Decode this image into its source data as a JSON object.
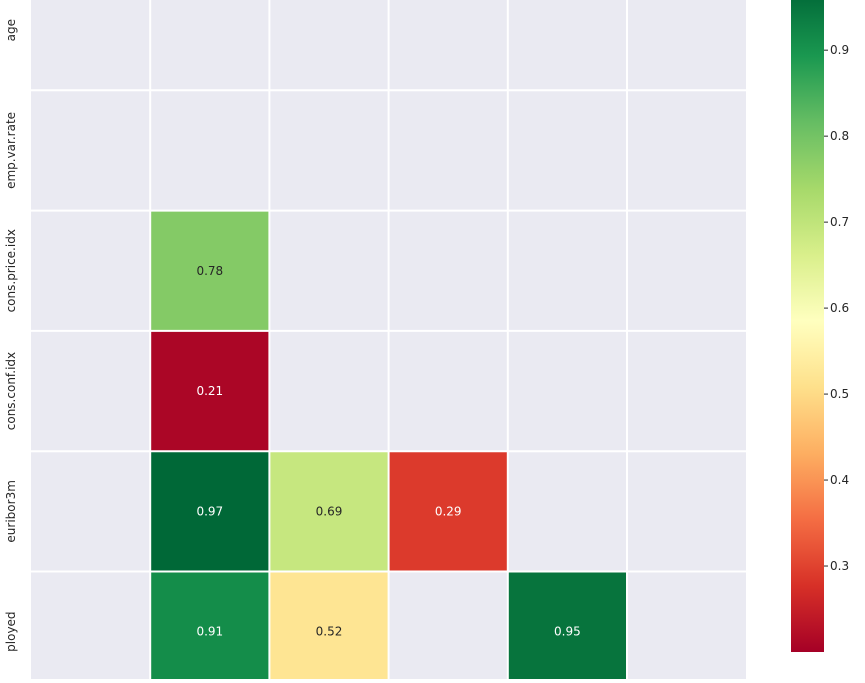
{
  "chart_data": {
    "type": "heatmap",
    "rows": [
      "age",
      "emp.var.rate",
      "cons.price.idx",
      "cons.conf.idx",
      "euribor3m",
      "nr.employed"
    ],
    "row_label_visible": [
      "age",
      "emp.var.rate",
      "cons.price.idx",
      "cons.conf.idx",
      "euribor3m",
      "ployed"
    ],
    "n_cols": 6,
    "cells": [
      {
        "row": 2,
        "col": 1,
        "value": 0.78,
        "label": "0.78"
      },
      {
        "row": 3,
        "col": 1,
        "value": 0.21,
        "label": "0.21"
      },
      {
        "row": 4,
        "col": 1,
        "value": 0.97,
        "label": "0.97"
      },
      {
        "row": 4,
        "col": 2,
        "value": 0.69,
        "label": "0.69"
      },
      {
        "row": 4,
        "col": 3,
        "value": 0.29,
        "label": "0.29"
      },
      {
        "row": 5,
        "col": 1,
        "value": 0.91,
        "label": "0.91"
      },
      {
        "row": 5,
        "col": 2,
        "value": 0.52,
        "label": "0.52"
      },
      {
        "row": 5,
        "col": 4,
        "value": 0.95,
        "label": "0.95"
      }
    ],
    "colorbar": {
      "ticks": [
        "0.3",
        "0.4",
        "0.5",
        "0.6",
        "0.7",
        "0.8",
        "0.9"
      ],
      "range": [
        0.2,
        0.97
      ],
      "colormap": "RdYlGn"
    },
    "background_color": "#eaeaf2",
    "grid_color": "#ffffff"
  }
}
